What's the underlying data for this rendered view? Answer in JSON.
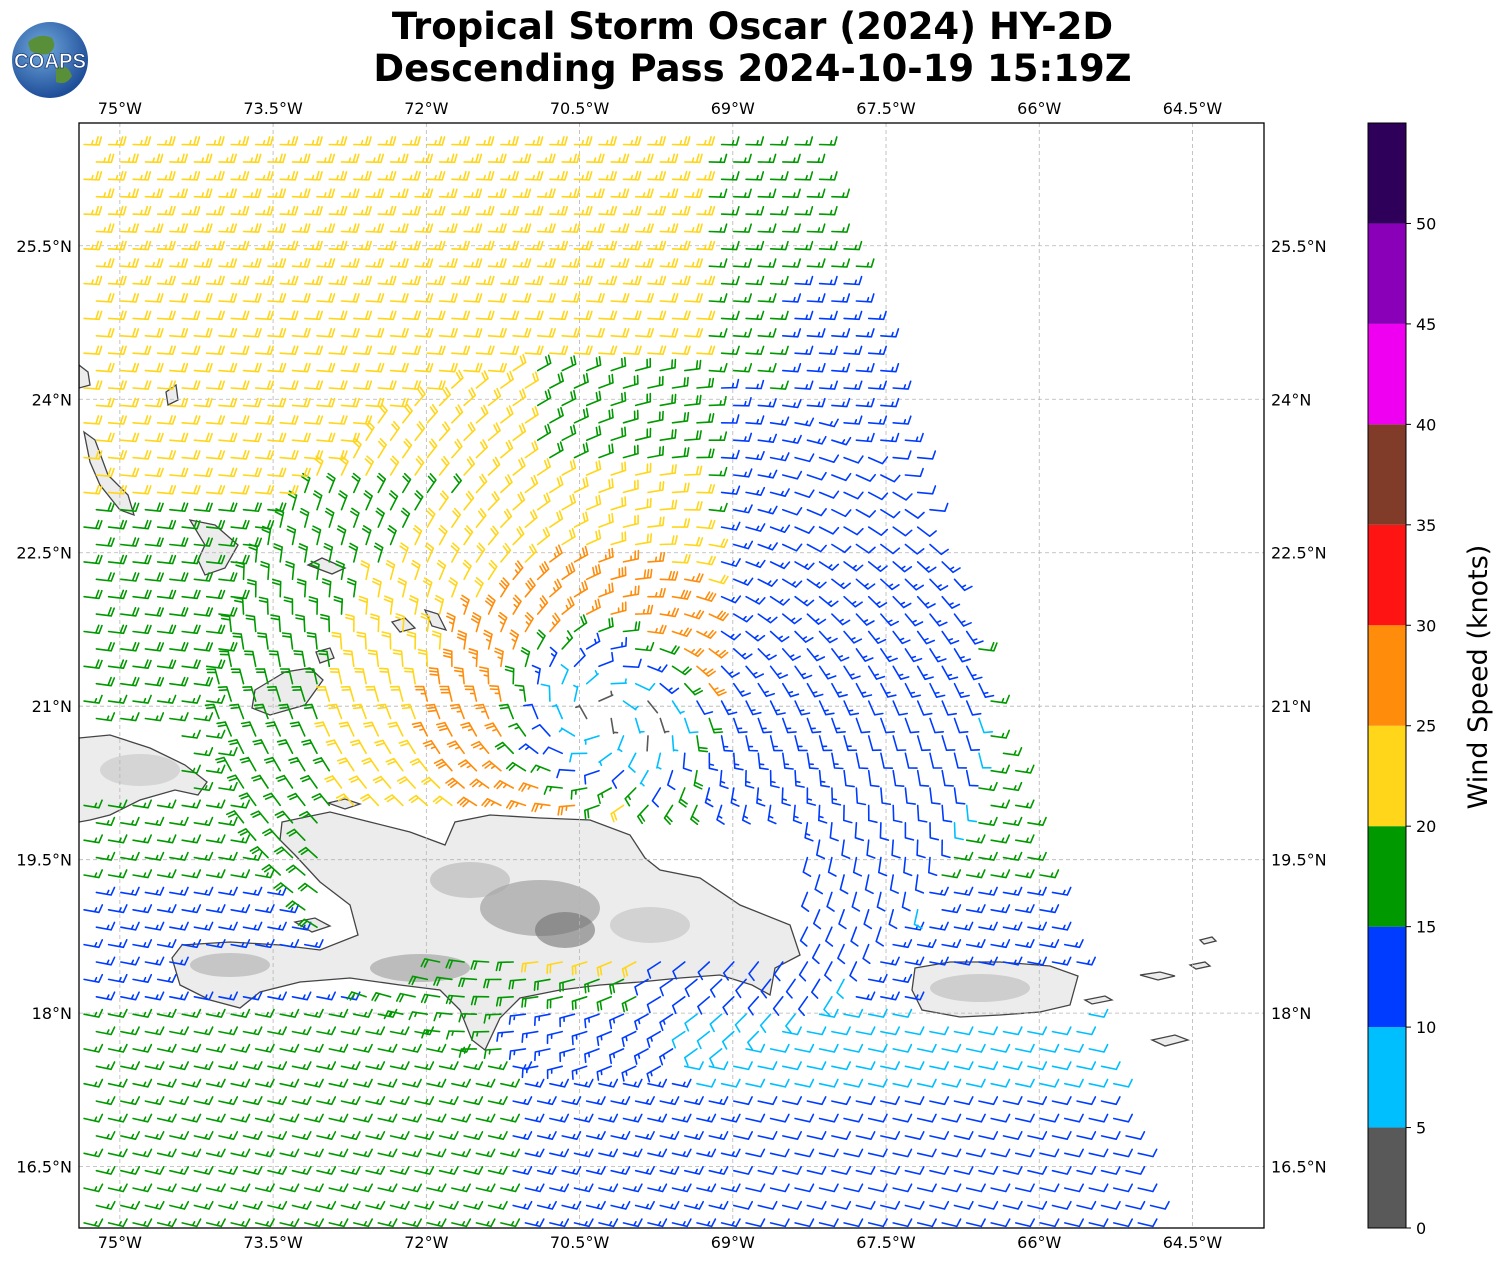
{
  "title": {
    "line1": "Tropical Storm Oscar (2024) HY-2D",
    "line2": "Descending Pass 2024-10-19 15:19Z"
  },
  "logo": {
    "text": "COAPS",
    "icon": "globe-logo-icon"
  },
  "map": {
    "lon_range": [
      -75.4,
      -63.8
    ],
    "lat_range": [
      15.9,
      26.7
    ],
    "lon_ticks": [
      "75°W",
      "73.5°W",
      "72°W",
      "70.5°W",
      "69°W",
      "67.5°W",
      "66°W",
      "64.5°W"
    ],
    "lon_tick_values": [
      -75,
      -73.5,
      -72,
      -70.5,
      -69,
      -67.5,
      -66,
      -64.5
    ],
    "lat_ticks": [
      "16.5°N",
      "18°N",
      "19.5°N",
      "21°N",
      "22.5°N",
      "24°N",
      "25.5°N"
    ],
    "lat_tick_values": [
      16.5,
      18,
      19.5,
      21,
      22.5,
      24,
      25.5
    ],
    "grid": true,
    "storm_center": {
      "lon": -70.3,
      "lat": 20.9
    },
    "swath_east_edge": [
      [
        -68.2,
        26.7
      ],
      [
        -64.8,
        15.9
      ]
    ],
    "features": [
      "Cuba",
      "Bahamas",
      "Turks and Caicos",
      "Hispaniola",
      "Puerto Rico",
      "Virgin Islands"
    ]
  },
  "colorbar": {
    "label": "Wind Speed (knots)",
    "ticks": [
      "0",
      "5",
      "10",
      "15",
      "20",
      "25",
      "30",
      "35",
      "40",
      "45",
      "50"
    ],
    "bins": [
      {
        "min": 0,
        "max": 5,
        "color": "#595959"
      },
      {
        "min": 5,
        "max": 10,
        "color": "#00BFFF"
      },
      {
        "min": 10,
        "max": 15,
        "color": "#003CFF"
      },
      {
        "min": 15,
        "max": 20,
        "color": "#009900"
      },
      {
        "min": 20,
        "max": 25,
        "color": "#FFD619"
      },
      {
        "min": 25,
        "max": 30,
        "color": "#FF8C0A"
      },
      {
        "min": 30,
        "max": 35,
        "color": "#FF1414"
      },
      {
        "min": 35,
        "max": 40,
        "color": "#803C28"
      },
      {
        "min": 40,
        "max": 45,
        "color": "#F000F0"
      },
      {
        "min": 45,
        "max": 50,
        "color": "#8A00B8"
      },
      {
        "min": 50,
        "max": 55,
        "color": "#2E005A"
      }
    ]
  }
}
